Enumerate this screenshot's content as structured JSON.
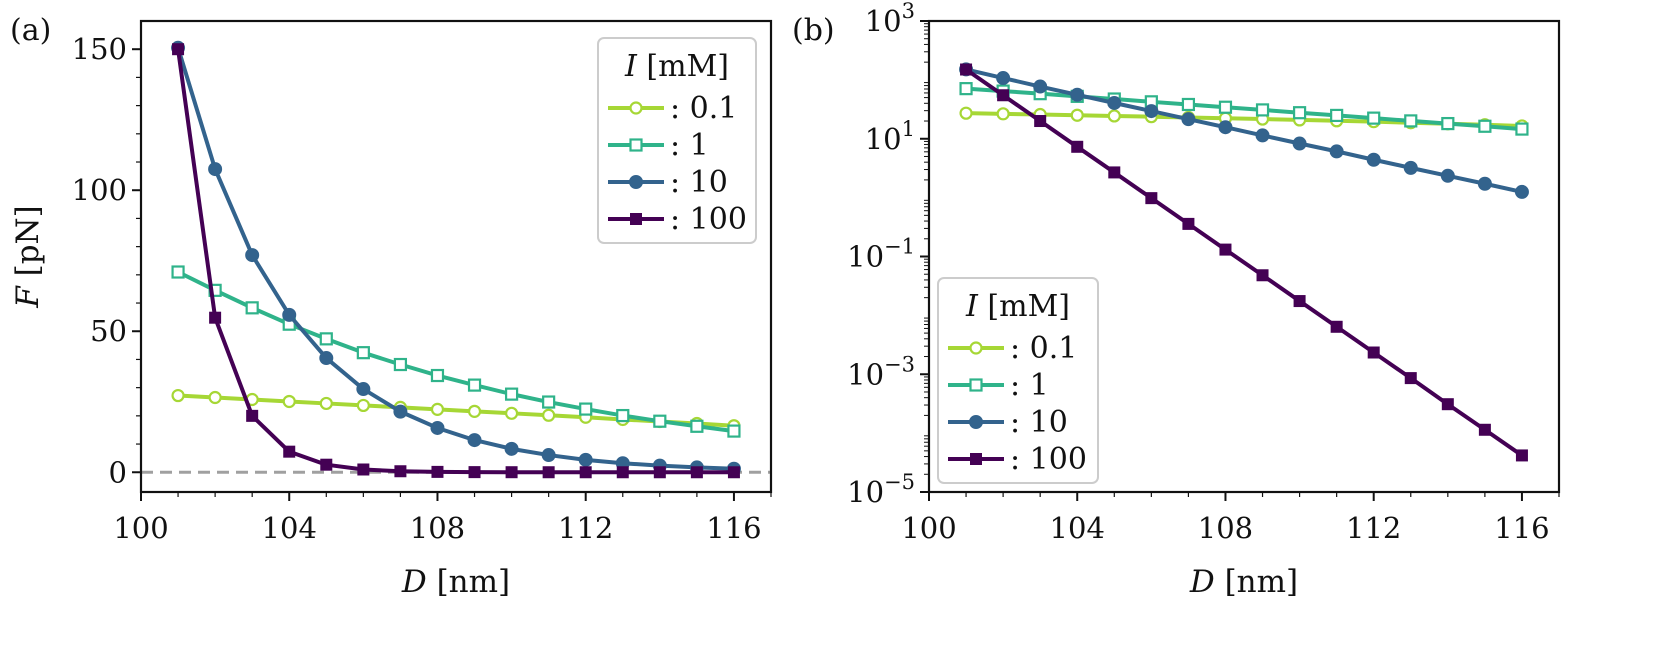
{
  "chart_data": [
    {
      "type": "line",
      "panel_label": "(a)",
      "xlabel_var": "D",
      "xlabel_unit": "[nm]",
      "ylabel_var": "F",
      "ylabel_unit": "[pN]",
      "yscale": "linear",
      "xlim": [
        100,
        117
      ],
      "ylim": [
        -7,
        160
      ],
      "x_ticks": [
        100,
        104,
        108,
        112,
        116
      ],
      "x_tick_labels": [
        "100",
        "104",
        "108",
        "112",
        "116"
      ],
      "y_ticks": [
        0,
        50,
        100,
        150
      ],
      "y_tick_labels": [
        "0",
        "50",
        "100",
        "150"
      ],
      "reference_line": {
        "y": 0,
        "style": "dashed",
        "color": "#a0a0a0"
      },
      "x": [
        101,
        102,
        103,
        104,
        105,
        106,
        107,
        108,
        109,
        110,
        111,
        112,
        113,
        114,
        115,
        116
      ],
      "legend": {
        "title_var": "I",
        "title_unit": "[mM]",
        "position": "top-right"
      },
      "series": [
        {
          "name": ": 0.1",
          "color": "#a6d735",
          "marker": "open-circle",
          "values": [
            27.2,
            26.5,
            25.8,
            25.1,
            24.4,
            23.7,
            23.0,
            22.3,
            21.6,
            20.9,
            20.2,
            19.5,
            18.7,
            18.0,
            17.3,
            16.5
          ]
        },
        {
          "name": ": 1",
          "color": "#2fb38a",
          "marker": "open-square",
          "values": [
            71,
            64.5,
            58.3,
            52.5,
            47.3,
            42.4,
            38.2,
            34.3,
            30.9,
            27.7,
            24.9,
            22.4,
            20.1,
            18.1,
            16.3,
            14.6
          ]
        },
        {
          "name": ": 10",
          "color": "#33638d",
          "marker": "filled-circle",
          "values": [
            150.5,
            107.5,
            77.0,
            55.8,
            40.5,
            29.5,
            21.5,
            15.7,
            11.4,
            8.3,
            6.1,
            4.4,
            3.2,
            2.35,
            1.72,
            1.25
          ]
        },
        {
          "name": ": 100",
          "color": "#440154",
          "marker": "filled-square",
          "values": [
            150.0,
            54.8,
            20.0,
            7.3,
            2.68,
            0.98,
            0.358,
            0.131,
            0.048,
            0.0175,
            0.0064,
            0.00234,
            0.00086,
            0.00031,
            0.000114,
            4.18e-05
          ]
        }
      ]
    },
    {
      "type": "line",
      "panel_label": "(b)",
      "xlabel_var": "D",
      "xlabel_unit": "[nm]",
      "yscale": "log",
      "xlim": [
        100,
        117
      ],
      "ylim_log10": [
        -5,
        3
      ],
      "x_ticks": [
        100,
        104,
        108,
        112,
        116
      ],
      "x_tick_labels": [
        "100",
        "104",
        "108",
        "112",
        "116"
      ],
      "y_ticks_log10": [
        -5,
        -3,
        -1,
        1,
        3
      ],
      "y_tick_base": "10",
      "y_tick_exponents": [
        "−5",
        "−3",
        "−1",
        "1",
        "3"
      ],
      "x": [
        101,
        102,
        103,
        104,
        105,
        106,
        107,
        108,
        109,
        110,
        111,
        112,
        113,
        114,
        115,
        116
      ],
      "legend": {
        "title_var": "I",
        "title_unit": "[mM]",
        "position": "bottom-left"
      },
      "series": [
        {
          "name": ": 0.1",
          "color": "#a6d735",
          "marker": "open-circle",
          "values": [
            27.2,
            26.5,
            25.8,
            25.1,
            24.4,
            23.7,
            23.0,
            22.3,
            21.6,
            20.9,
            20.2,
            19.5,
            18.7,
            18.0,
            17.3,
            16.5
          ]
        },
        {
          "name": ": 1",
          "color": "#2fb38a",
          "marker": "open-square",
          "values": [
            71,
            64.5,
            58.3,
            52.5,
            47.3,
            42.4,
            38.2,
            34.3,
            30.9,
            27.7,
            24.9,
            22.4,
            20.1,
            18.1,
            16.3,
            14.6
          ]
        },
        {
          "name": ": 10",
          "color": "#33638d",
          "marker": "filled-circle",
          "values": [
            150.5,
            107.5,
            77.0,
            55.8,
            40.5,
            29.5,
            21.5,
            15.7,
            11.4,
            8.3,
            6.1,
            4.4,
            3.2,
            2.35,
            1.72,
            1.25
          ]
        },
        {
          "name": ": 100",
          "color": "#440154",
          "marker": "filled-square",
          "values": [
            150.0,
            54.8,
            20.0,
            7.3,
            2.68,
            0.98,
            0.358,
            0.131,
            0.048,
            0.0175,
            0.0064,
            0.00234,
            0.00086,
            0.00031,
            0.000114,
            4.18e-05
          ]
        }
      ]
    }
  ]
}
